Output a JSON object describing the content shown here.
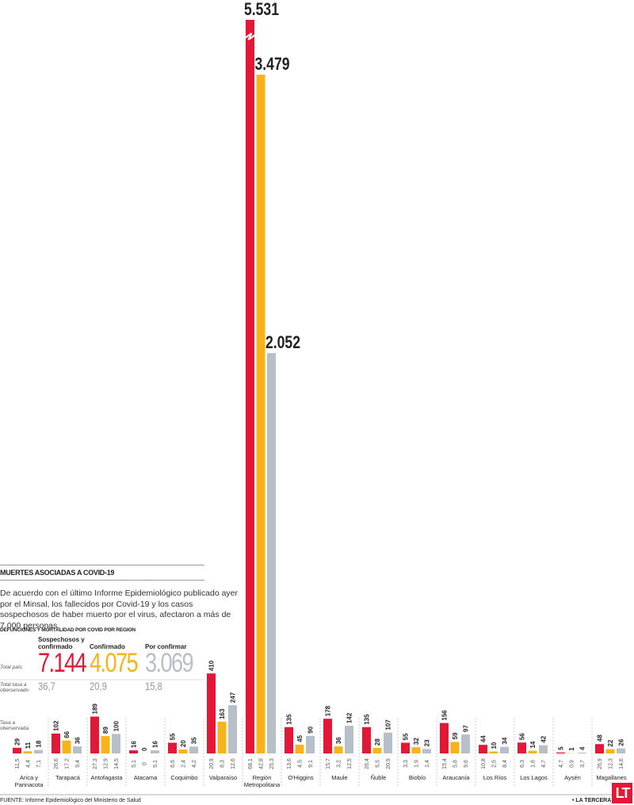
{
  "chart_data": {
    "type": "bar",
    "title": "MUERTES ASOCIADAS A COVID-19",
    "subtitle": "De acuerdo con el último Informe Epidemiológico publicado ayer por el Minsal, los fallecidos por Covid-19 y los casos sospechosos de haber muerto por el virus, afectaron a más de 7.000 personas.",
    "section_label": "DEFUNCIONES Y MORTALIDAD POR COVID POR REGION",
    "total_caption": "Total país",
    "total_rate_caption": "Total tasa a oberservado",
    "rate_caption": "Tasa a oberservada",
    "categories": [
      "Arica y Parinacota",
      "Tarapacá",
      "Antofagasta",
      "Atacama",
      "Coquimbo",
      "Valparaíso",
      "Región Metropolitana",
      "O'Higgins",
      "Maule",
      "Ñuble",
      "Biobío",
      "Araucanía",
      "Los Ríos",
      "Los Lagos",
      "Aysén",
      "Magallanes"
    ],
    "series": [
      {
        "name": "Sospechosos y confirmado",
        "color": "#e31837",
        "values": [
          29,
          102,
          189,
          16,
          55,
          410,
          5531,
          135,
          178,
          135,
          55,
          156,
          44,
          56,
          5,
          48
        ],
        "value_labels": [
          "29",
          "102",
          "189",
          "16",
          "55",
          "410",
          "5.531",
          "135",
          "178",
          "135",
          "55",
          "156",
          "44",
          "56",
          "5",
          "48"
        ],
        "rates": [
          11.5,
          26.6,
          27.3,
          5.1,
          6.6,
          20.9,
          68.1,
          13.6,
          15.7,
          26.4,
          3.3,
          15.4,
          10.8,
          6.3,
          4.7,
          26.9
        ],
        "rate_labels": [
          "11,5",
          "26,6",
          "27,3",
          "5,1",
          "6,6",
          "20,9",
          "68,1",
          "13,6",
          "15,7",
          "26,4",
          "3,3",
          "15,4",
          "10,8",
          "6,3",
          "4,7",
          "26,9"
        ],
        "total": {
          "value": 7144,
          "label": "7.144"
        },
        "total_rate": {
          "value": 36.7,
          "label": "36,7"
        }
      },
      {
        "name": "Confirmado",
        "color": "#f7b418",
        "values": [
          11,
          66,
          89,
          0,
          20,
          163,
          3479,
          45,
          36,
          28,
          32,
          59,
          10,
          14,
          1,
          22
        ],
        "value_labels": [
          "11",
          "66",
          "89",
          "0",
          "20",
          "163",
          "3.479",
          "45",
          "36",
          "28",
          "32",
          "59",
          "10",
          "14",
          "1",
          "22"
        ],
        "rates": [
          4.4,
          17.2,
          12.9,
          0,
          2.4,
          8.3,
          42.8,
          4.5,
          3.2,
          5.5,
          1.9,
          5.8,
          2.5,
          1.6,
          0.9,
          12.3
        ],
        "rate_labels": [
          "4,4",
          "17,2",
          "12,9",
          "0",
          "2,4",
          "8,3",
          "42,8",
          "4,5",
          "3,2",
          "5,5",
          "1,9",
          "5,8",
          "2,5",
          "1,6",
          "0,9",
          "12,3"
        ],
        "total": {
          "value": 4075,
          "label": "4.075"
        },
        "total_rate": {
          "value": 20.9,
          "label": "20,9"
        }
      },
      {
        "name": "Por confirmar",
        "color": "#b7c0c8",
        "values": [
          18,
          36,
          100,
          16,
          35,
          247,
          2052,
          90,
          142,
          107,
          23,
          97,
          34,
          42,
          4,
          26
        ],
        "value_labels": [
          "18",
          "36",
          "100",
          "16",
          "35",
          "247",
          "2.052",
          "90",
          "142",
          "107",
          "23",
          "97",
          "34",
          "42",
          "4",
          "26"
        ],
        "rates": [
          7.1,
          9.4,
          14.5,
          5.1,
          4.2,
          12.6,
          25.3,
          9.1,
          12.5,
          20.9,
          1.4,
          9.6,
          8.4,
          4.7,
          3.7,
          14.6
        ],
        "rate_labels": [
          "7,1",
          "9,4",
          "14,5",
          "5,1",
          "4,2",
          "12,6",
          "25,3",
          "9,1",
          "12,5",
          "20,9",
          "1,4",
          "9,6",
          "8,4",
          "4,7",
          "3,7",
          "14,6"
        ],
        "total": {
          "value": 3069,
          "label": "3.069"
        },
        "total_rate": {
          "value": 15.8,
          "label": "15,8"
        }
      }
    ],
    "source": "FUENTE: Informe Epidemiológico del Ministerio de Salud",
    "brand": "• LA TERCERA",
    "logo": "LT"
  }
}
